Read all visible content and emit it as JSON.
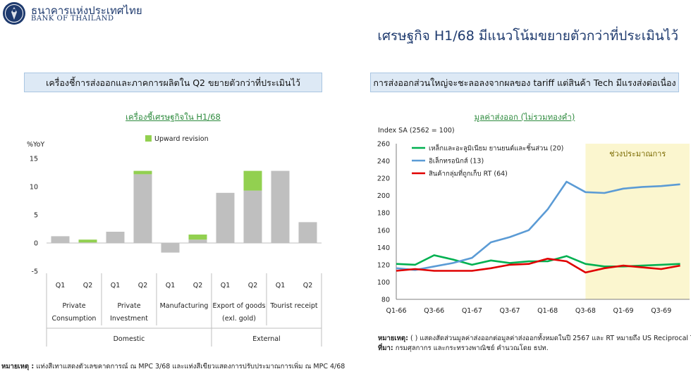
{
  "header": {
    "org_name_th": "ธนาคารแห่งประเทศไทย",
    "org_name_en": "BANK OF THAILAND",
    "page_title": "เศรษฐกิจ H1/68 มีแนวโน้มขยายตัวกว่าที่ประเมินไว้"
  },
  "colors": {
    "grey_bar": "#bfbfbf",
    "green": "#92d050",
    "blue_line": "#5b9bd5",
    "green_line": "#00b050",
    "red_line": "#e00000",
    "forecast_shade": "#fbf6cf"
  },
  "left_panel": {
    "panel_title": "เครื่องชี้การส่งออกและภาคการผลิตใน Q2 ขยายตัวกว่าที่ประเมินไว้",
    "footnote_label": "หมายเหตุ :",
    "footnote_text": "แท่งสีเทาแสดงตัวเลขคาดการณ์ ณ MPC 3/68 และแท่งสีเขียวแสดงการปรับประมาณการเพิ่ม ณ MPC 4/68"
  },
  "right_panel": {
    "panel_title": "การส่งออกส่วนใหญ่จะชะลอลงจากผลของ tariff แต่สินค้า Tech มีแรงส่งต่อเนื่อง",
    "note_label": "หมายเหตุ:",
    "note_text": "( ) แสดงสัดส่วนมูลค่าส่งออกต่อมูลค่าส่งออกทั้งหมดในปี 2567 และ RT หมายถึง US Reciprocal Tariff",
    "source_label": "ที่มา:",
    "source_text": "กรมศุลกากร และกระทรวงพาณิชย์ คำนวณโดย ธปท."
  },
  "chart_data": [
    {
      "type": "bar",
      "stacked": true,
      "title": "เครื่องชี้เศรษฐกิจใน H1/68",
      "ylabel": "%YoY",
      "ylim": [
        -5,
        15
      ],
      "yticks": [
        -5,
        0,
        5,
        10,
        15
      ],
      "grid": false,
      "legend": {
        "position": "top-center",
        "entries": [
          "Upward revision"
        ]
      },
      "categories": [
        "Q1",
        "Q2",
        "Q1",
        "Q2",
        "Q1",
        "Q2",
        "Q1",
        "Q2",
        "Q1",
        "Q2"
      ],
      "groups": [
        {
          "label_lines": [
            "Private",
            "Consumption"
          ]
        },
        {
          "label_lines": [
            "Private",
            "Investment"
          ]
        },
        {
          "label_lines": [
            "Manufacturing"
          ]
        },
        {
          "label_lines": [
            "Export of goods",
            "(exl. gold)"
          ]
        },
        {
          "label_lines": [
            "Tourist receipt"
          ]
        }
      ],
      "supergroups": [
        {
          "label": "Domestic"
        },
        {
          "label": "External"
        }
      ],
      "series": [
        {
          "name": "",
          "values": [
            1.2,
            0.1,
            2.0,
            12.2,
            -1.7,
            0.6,
            8.9,
            9.3,
            12.8,
            3.7
          ]
        },
        {
          "name": "Upward revision",
          "values": [
            0,
            0.5,
            0,
            0.6,
            0,
            0.9,
            0,
            3.5,
            0,
            0
          ]
        }
      ]
    },
    {
      "type": "line",
      "title": "มูลค่าส่งออก (ไม่รวมทองคำ)",
      "ylabel": "Index SA (2562 = 100)",
      "ylim": [
        80,
        260
      ],
      "yticks": [
        80,
        100,
        120,
        140,
        160,
        180,
        200,
        220,
        240,
        260
      ],
      "grid": false,
      "legend": {
        "position": "top-left"
      },
      "x": [
        "Q1-66",
        "Q2-66",
        "Q3-66",
        "Q4-66",
        "Q1-67",
        "Q2-67",
        "Q3-67",
        "Q4-67",
        "Q1-68",
        "Q2-68",
        "Q3-68",
        "Q4-68",
        "Q1-69",
        "Q2-69",
        "Q3-69",
        "Q4-69"
      ],
      "x_tick_labels": [
        "Q1-66",
        "Q3-66",
        "Q1-67",
        "Q3-67",
        "Q1-68",
        "Q3-68",
        "Q1-69",
        "Q3-69"
      ],
      "forecast_region": {
        "label": "ช่วงประมาณการ",
        "start": "Q3-68",
        "end": "Q4-69"
      },
      "series": [
        {
          "name": "เหล็กและอะลูมิเนียม ยานยนต์และชิ้นส่วน (20)",
          "values": [
            121,
            120,
            131,
            126,
            120,
            125,
            122,
            124,
            124,
            130,
            121,
            118,
            118,
            119,
            120,
            121
          ]
        },
        {
          "name": "อิเล็กทรอนิกส์ (13)",
          "values": [
            116,
            114,
            118,
            122,
            128,
            146,
            152,
            160,
            184,
            216,
            204,
            203,
            208,
            210,
            211,
            213
          ]
        },
        {
          "name": "สินค้ากลุ่มที่ถูกเก็บ RT (64)",
          "values": [
            113,
            115,
            113,
            113,
            113,
            116,
            120,
            121,
            127,
            124,
            111,
            116,
            119,
            117,
            115,
            119
          ]
        }
      ]
    }
  ]
}
